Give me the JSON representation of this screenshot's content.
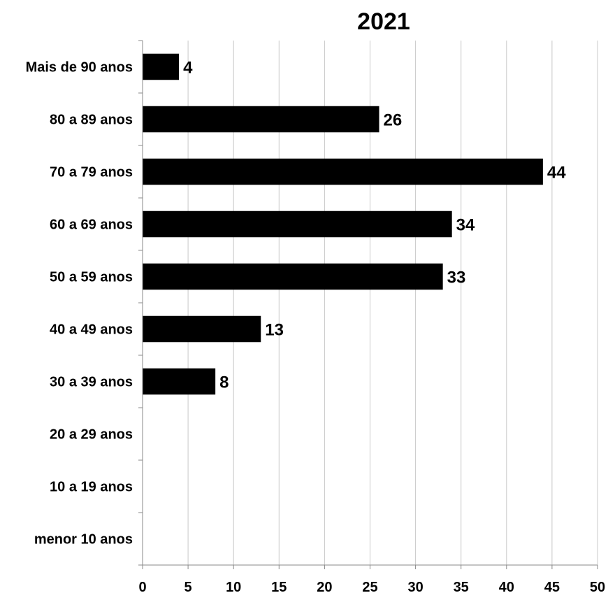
{
  "chart_data": {
    "type": "bar",
    "orientation": "horizontal",
    "title": "2021",
    "xlabel": "",
    "ylabel": "",
    "categories": [
      "Mais de 90 anos",
      "80 a 89 anos",
      "70 a 79 anos",
      "60 a 69 anos",
      "50 a 59 anos",
      "40 a 49 anos",
      "30 a 39 anos",
      "20 a 29 anos",
      "10 a 19 anos",
      "menor 10 anos"
    ],
    "values": [
      4,
      26,
      44,
      34,
      33,
      13,
      8,
      null,
      null,
      null
    ],
    "xlim": [
      0,
      50
    ],
    "xticks": [
      0,
      5,
      10,
      15,
      20,
      25,
      30,
      35,
      40,
      45,
      50
    ],
    "grid": "vertical",
    "legend": "none",
    "bar_color": "#000000",
    "grid_color": "#c8c8c8"
  }
}
